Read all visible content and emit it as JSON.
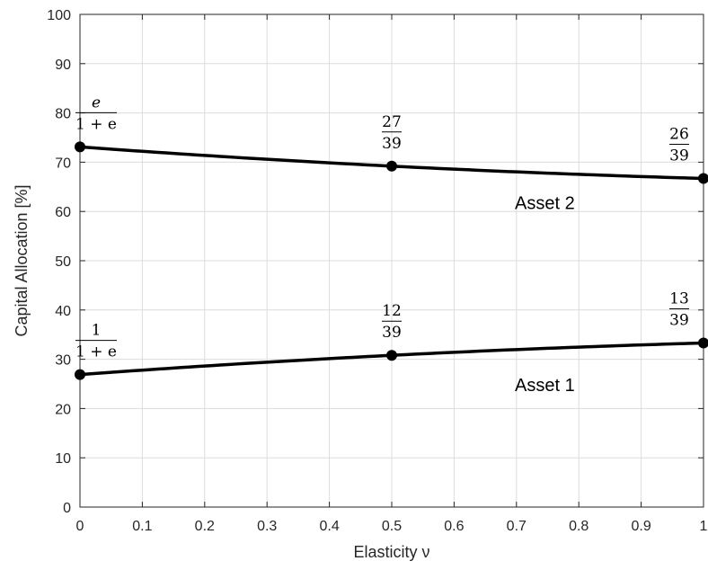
{
  "chart_data": {
    "type": "line",
    "xlabel": "Elasticity ν",
    "ylabel": "Capital Allocation [%]",
    "xlim": [
      0,
      1
    ],
    "ylim": [
      0,
      100
    ],
    "xticks": [
      0,
      0.1,
      0.2,
      0.3,
      0.4,
      0.5,
      0.6,
      0.7,
      0.8,
      0.9,
      1
    ],
    "xtick_labels": [
      "0",
      "0.1",
      "0.2",
      "0.3",
      "0.4",
      "0.5",
      "0.6",
      "0.7",
      "0.8",
      "0.9",
      "1"
    ],
    "yticks": [
      0,
      10,
      20,
      30,
      40,
      50,
      60,
      70,
      80,
      90,
      100
    ],
    "ytick_labels": [
      "0",
      "10",
      "20",
      "30",
      "40",
      "50",
      "60",
      "70",
      "80",
      "90",
      "100"
    ],
    "grid": true,
    "series": [
      {
        "name": "Asset 2",
        "color": "#000000",
        "x": [
          0,
          0.5,
          1
        ],
        "y": [
          73.1,
          69.2,
          66.7
        ],
        "point_labels": [
          {
            "num": "e",
            "den": "1 + e"
          },
          {
            "num": "27",
            "den": "39"
          },
          {
            "num": "26",
            "den": "39"
          }
        ]
      },
      {
        "name": "Asset 1",
        "color": "#000000",
        "x": [
          0,
          0.5,
          1
        ],
        "y": [
          26.9,
          30.8,
          33.3
        ],
        "point_labels": [
          {
            "num": "1",
            "den": "1 + e"
          },
          {
            "num": "12",
            "den": "39"
          },
          {
            "num": "13",
            "den": "39"
          }
        ]
      }
    ]
  }
}
